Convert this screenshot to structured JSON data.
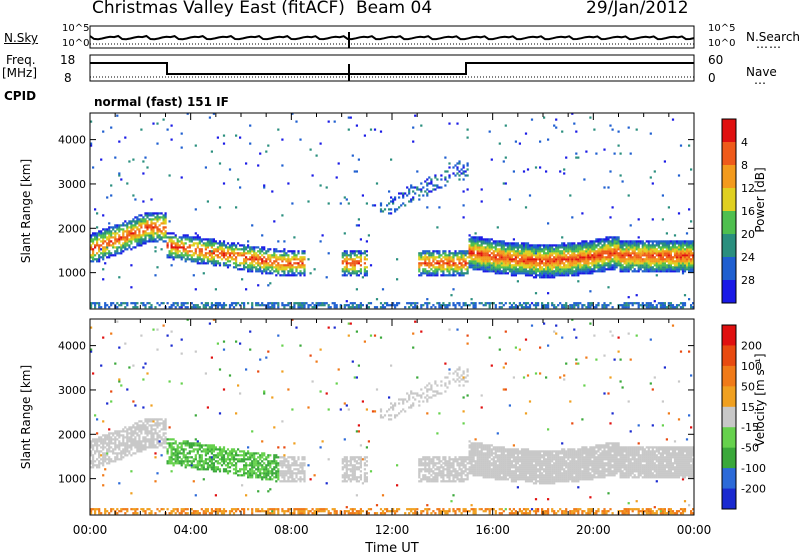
{
  "header": {
    "station": "Christmas Valley East (fitACF)",
    "beam": "Beam 04",
    "date": "29/Jan/2012"
  },
  "top_panels": {
    "nsky_label": "N.Sky",
    "nsearch_label": "N.Search",
    "noise_ticks": [
      "10^5",
      "10^0"
    ],
    "freq_label": "Freq.",
    "freq_unit": "[MHz]",
    "freq_ticks": [
      "18",
      "8"
    ],
    "nave_label": "Nave",
    "nave_ticks": [
      "60",
      "0"
    ],
    "cpid_label": "CPID",
    "cpid_value": "normal (fast) 151 IF"
  },
  "chart_data": [
    {
      "type": "heatmap",
      "panel": "power",
      "ylabel": "Slant Range [km]",
      "yticks": [
        1000,
        2000,
        3000,
        4000
      ],
      "ylim": [
        180,
        4600
      ],
      "xlim": [
        0,
        24
      ],
      "colorbar": {
        "label": "Power [dB]",
        "ticks": [
          4,
          8,
          12,
          16,
          20,
          24,
          28
        ],
        "range": [
          0,
          32
        ],
        "colors": [
          "#1a1ae6",
          "#1f5fd0",
          "#2a8f7e",
          "#4fbf4f",
          "#e0d020",
          "#f39a1c",
          "#ef5a1a",
          "#e01010"
        ]
      }
    },
    {
      "type": "heatmap",
      "panel": "velocity",
      "ylabel": "Slant Range [km]",
      "yticks": [
        1000,
        2000,
        3000,
        4000
      ],
      "ylim": [
        180,
        4600
      ],
      "xlim": [
        0,
        24
      ],
      "xlabel": "Time UT",
      "xticks": [
        "00:00",
        "04:00",
        "08:00",
        "12:00",
        "16:00",
        "20:00",
        "00:00"
      ],
      "colorbar": {
        "label": "Velocity [m s⁻¹]",
        "ticks": [
          "200",
          "100",
          "50",
          "15",
          "-15",
          "-50",
          "-100",
          "-200"
        ],
        "colors": [
          "#1a2ad0",
          "#2c6ad8",
          "#3aa83a",
          "#66d14d",
          "#c8c8c8",
          "#f0a020",
          "#f07a18",
          "#e84a10",
          "#e01010"
        ]
      }
    }
  ]
}
